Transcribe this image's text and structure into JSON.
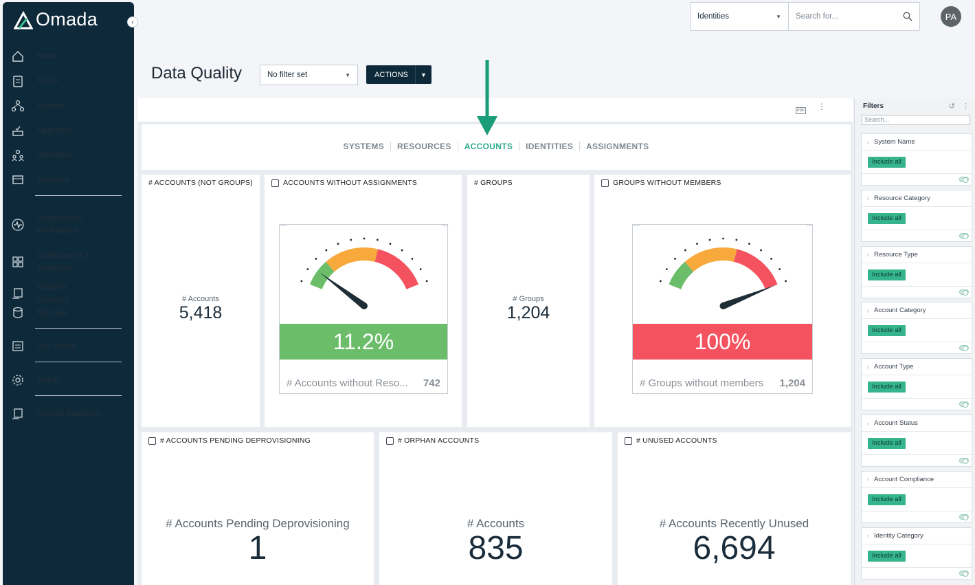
{
  "sidebar": {
    "brand": "Omada",
    "collapse_icon": "chevron-left-icon",
    "items": [
      {
        "label": "Home",
        "icon": "home-icon"
      },
      {
        "label": "Tasks",
        "icon": "clipboard-icon"
      },
      {
        "label": "Access",
        "icon": "hierarchy-icon"
      },
      {
        "label": "Approval",
        "icon": "approval-icon"
      },
      {
        "label": "Identities",
        "icon": "people-icon"
      },
      {
        "label": "Services",
        "icon": "services-icon"
      },
      {
        "label": "Compliance workbench",
        "icon": "pulse-icon"
      },
      {
        "label": "Dashboards & Analytics",
        "icon": "grid-icon"
      },
      {
        "label": "Reports (classic)",
        "icon": "report-icon"
      },
      {
        "label": "My data",
        "icon": "database-icon"
      },
      {
        "label": "List Views",
        "icon": "list-view-icon"
      },
      {
        "label": "Setup",
        "icon": "gear-icon"
      },
      {
        "label": "Omada Academy",
        "icon": "academy-icon"
      }
    ]
  },
  "topbar": {
    "scope_value": "Identities",
    "search_placeholder": "Search for...",
    "avatar_initials": "PA"
  },
  "header": {
    "title": "Data Quality",
    "filter_value": "No filter set",
    "actions_label": "ACTIONS"
  },
  "toolbar": {
    "pdf_label": "PDF"
  },
  "tabs": {
    "items": [
      "SYSTEMS",
      "RESOURCES",
      "ACCOUNTS",
      "IDENTITIES",
      "ASSIGNMENTS"
    ],
    "active": "ACCOUNTS"
  },
  "cards": {
    "accounts_not_groups": {
      "title": "# ACCOUNTS (NOT GROUPS)",
      "label": "# Accounts",
      "value": "5,418"
    },
    "accounts_without_assignments": {
      "title": "ACCOUNTS WITHOUT ASSIGNMENTS",
      "percent": "11.2%",
      "fraction": 0.112,
      "footer_label": "# Accounts without Reso...",
      "footer_value": "742",
      "band_color": "#6cbd6a"
    },
    "groups": {
      "title": "# GROUPS",
      "label": "# Groups",
      "value": "1,204"
    },
    "groups_without_members": {
      "title": "GROUPS WITHOUT MEMBERS",
      "percent": "100%",
      "fraction": 1.0,
      "footer_label": "# Groups without members",
      "footer_value": "1,204",
      "band_color": "#f4525e"
    },
    "pending_deprovisioning": {
      "title": "# ACCOUNTS PENDING DEPROVISIONING",
      "label": "# Accounts Pending Deprovisioning",
      "value": "1"
    },
    "orphan_accounts": {
      "title": "# ORPHAN ACCOUNTS",
      "label": "# Accounts",
      "value": "835"
    },
    "unused_accounts": {
      "title": "# UNUSED ACCOUNTS",
      "label": "# Accounts Recently Unused",
      "value": "6,694"
    }
  },
  "filters": {
    "title": "Filters",
    "search_placeholder": "Search...",
    "include_label": "Include all",
    "groups": [
      "System Name",
      "Resource Category",
      "Resource Type",
      "Account Category",
      "Account Type",
      "Account Status",
      "Account Compliance",
      "Identity Category"
    ]
  },
  "colors": {
    "accent": "#2eab8a",
    "sidebar": "#0e2a3a",
    "gauge_green": "#6cbd6a",
    "gauge_orange": "#f7a93c",
    "gauge_red": "#f4525e"
  }
}
